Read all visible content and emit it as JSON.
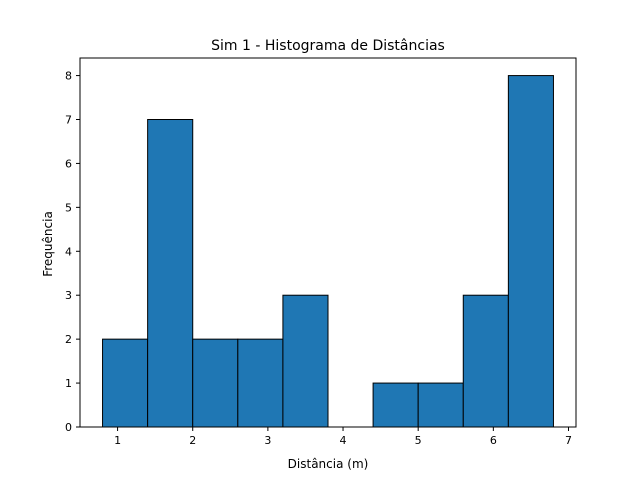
{
  "chart_data": {
    "type": "bar",
    "title": "Sim 1 - Histograma de Distâncias",
    "xlabel": "Distância (m)",
    "ylabel": "Frequência",
    "bin_edges": [
      0.8,
      1.4,
      2.0,
      2.6,
      3.2,
      3.8,
      4.4,
      5.0,
      5.6,
      6.2,
      6.8
    ],
    "values": [
      2,
      7,
      2,
      2,
      3,
      0,
      1,
      1,
      3,
      8
    ],
    "xlim": [
      0.5,
      7.1
    ],
    "ylim": [
      0,
      8.4
    ],
    "xticks": [
      1,
      2,
      3,
      4,
      5,
      6,
      7
    ],
    "yticks": [
      0,
      1,
      2,
      3,
      4,
      5,
      6,
      7,
      8
    ],
    "bar_color": "#1f77b4",
    "edge_color": "#000000",
    "grid": false,
    "legend": "none"
  }
}
